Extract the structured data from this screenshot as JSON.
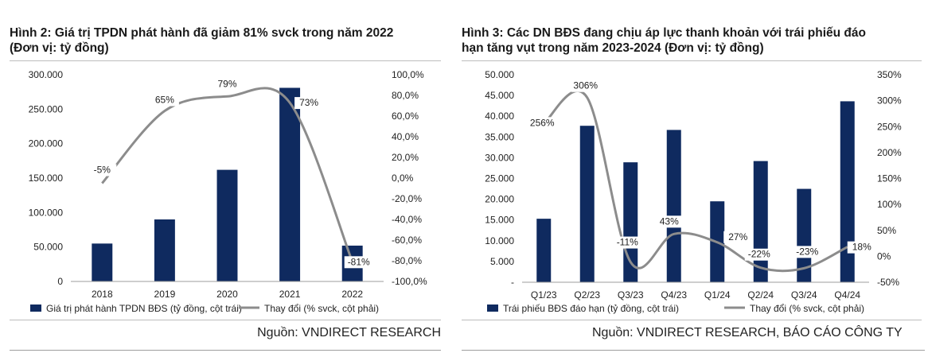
{
  "charts": [
    {
      "title_line1": "Hình 2: Giá trị TPDN phát hành đã giảm 81% svck trong năm 2022",
      "title_line2": "(Đơn vị: tỷ đồng)",
      "source": "Nguồn: VNDIRECT RESEARCH",
      "legend_bar": "Giá trị phát hành TPDN BĐS (tỷ đồng, cột trái)",
      "legend_line": "Thay đổi (% svck, cột phải)"
    },
    {
      "title_line1": "Hình 3: Các DN BĐS đang chịu áp lực thanh khoản với trái phiếu đáo",
      "title_line2": "hạn tăng vụt trong năm 2023-2024 (Đơn vị: tỷ đồng)",
      "source": "Nguồn: VNDIRECT RESEARCH, BÁO CÁO CÔNG TY",
      "legend_bar": "Trái phiếu BĐS đáo hạn (tỷ đồng, cột trái)",
      "legend_line": "Thay đổi (% svck, cột phải)"
    }
  ],
  "chart_data": [
    {
      "type": "bar",
      "categories": [
        "2018",
        "2019",
        "2020",
        "2021",
        "2022"
      ],
      "series": [
        {
          "name": "Giá trị phát hành TPDN BĐS (tỷ đồng, cột trái)",
          "type": "bar",
          "axis": "left",
          "values": [
            55000,
            90000,
            162000,
            281000,
            52000
          ]
        },
        {
          "name": "Thay đổi (% svck, cột phải)",
          "type": "line",
          "axis": "right",
          "values": [
            -5,
            65,
            79,
            73,
            -81
          ],
          "labels": [
            "-5%",
            "65%",
            "79%",
            "73%",
            "-81%"
          ]
        }
      ],
      "ylim_left": [
        0,
        300000
      ],
      "ylim_right": [
        -100,
        100
      ],
      "yticks_left": [
        "0",
        "50.000",
        "100.000",
        "150.000",
        "200.000",
        "250.000",
        "300.000"
      ],
      "yticks_right": [
        "-100,0%",
        "-80,0%",
        "-60,0%",
        "-40,0%",
        "-20,0%",
        "0,0%",
        "20,0%",
        "40,0%",
        "60,0%",
        "80,0%",
        "100,0%"
      ],
      "colors": {
        "bar": "#0f2a5f",
        "line": "#8c8c8c"
      },
      "legend": "bottom"
    },
    {
      "type": "bar",
      "categories": [
        "Q1/23",
        "Q2/23",
        "Q3/23",
        "Q4/23",
        "Q1/24",
        "Q2/24",
        "Q3/24",
        "Q4/24"
      ],
      "series": [
        {
          "name": "Trái phiếu BĐS đáo hạn (tỷ đồng, cột trái)",
          "type": "bar",
          "axis": "left",
          "values": [
            15300,
            37700,
            28900,
            36700,
            19500,
            29200,
            22500,
            43600
          ]
        },
        {
          "name": "Thay đổi (% svck, cột phải)",
          "type": "line",
          "axis": "right",
          "values": [
            256,
            306,
            -11,
            43,
            27,
            -22,
            -23,
            18
          ],
          "labels": [
            "256%",
            "306%",
            "-11%",
            "43%",
            "27%",
            "-22%",
            "-23%",
            "18%"
          ]
        }
      ],
      "ylim_left": [
        0,
        50000
      ],
      "ylim_right": [
        -50,
        350
      ],
      "yticks_left": [
        "-",
        "5.000",
        "10.000",
        "15.000",
        "20.000",
        "25.000",
        "30.000",
        "35.000",
        "40.000",
        "45.000",
        "50.000"
      ],
      "yticks_right": [
        "-50%",
        "0%",
        "50%",
        "100%",
        "150%",
        "200%",
        "250%",
        "300%",
        "350%"
      ],
      "colors": {
        "bar": "#0f2a5f",
        "line": "#8c8c8c"
      },
      "legend": "bottom"
    }
  ]
}
